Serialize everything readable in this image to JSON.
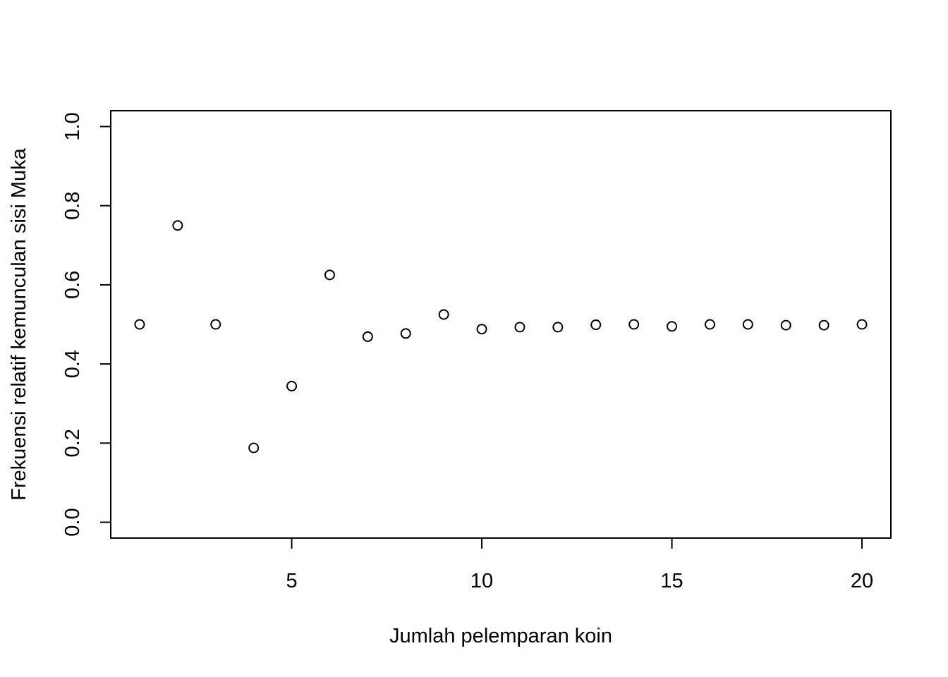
{
  "chart_data": {
    "type": "scatter",
    "title": "",
    "xlabel": "Jumlah pelemparan koin",
    "ylabel": "Frekuensi relatif kemunculan sisi Muka",
    "x": [
      1,
      2,
      3,
      4,
      5,
      6,
      7,
      8,
      9,
      10,
      11,
      12,
      13,
      14,
      15,
      16,
      17,
      18,
      19,
      20
    ],
    "y": [
      0.5,
      0.75,
      0.5,
      0.188,
      0.344,
      0.625,
      0.469,
      0.477,
      0.525,
      0.488,
      0.493,
      0.493,
      0.499,
      0.5,
      0.495,
      0.5,
      0.5,
      0.498,
      0.498,
      0.5
    ],
    "xlim": [
      0.24,
      20.76
    ],
    "ylim": [
      -0.04,
      1.04
    ],
    "xticks": [
      5,
      10,
      15,
      20
    ],
    "xtick_labels": [
      "5",
      "10",
      "15",
      "20"
    ],
    "yticks": [
      0.0,
      0.2,
      0.4,
      0.6,
      0.8,
      1.0
    ],
    "ytick_labels": [
      "0.0",
      "0.2",
      "0.4",
      "0.6",
      "0.8",
      "1.0"
    ],
    "marker": "open-circle",
    "marker_color": "#000000",
    "grid": false,
    "legend": "none"
  }
}
